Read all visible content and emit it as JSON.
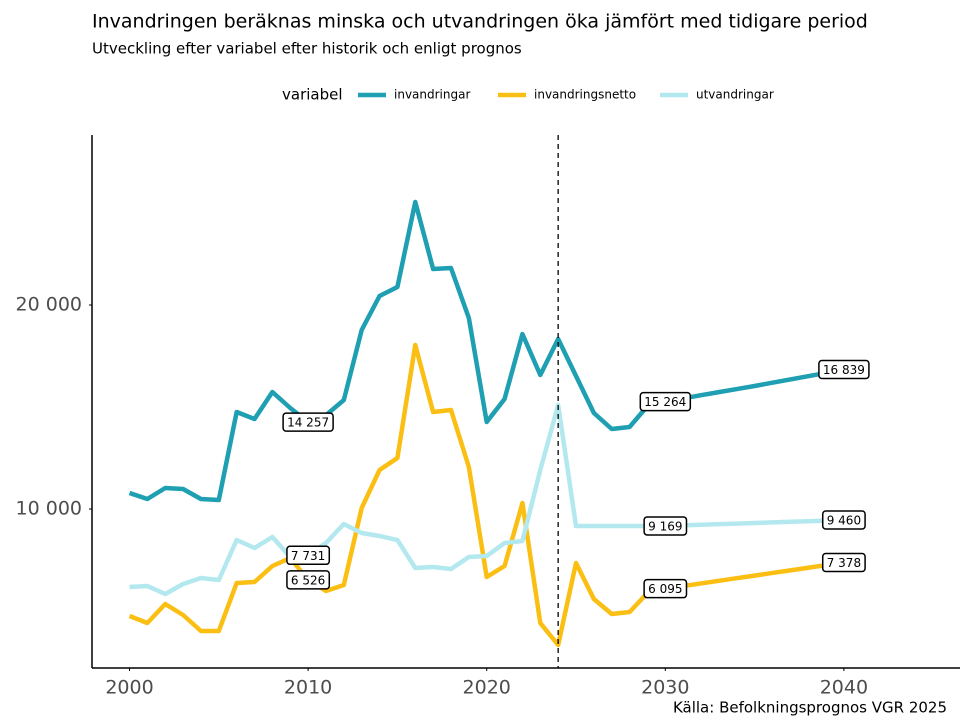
{
  "chart_data": {
    "type": "line",
    "title": "Invandringen beräknas minska och utvandringen öka jämfört med tidigare period",
    "subtitle": "Utveckling efter variabel efter historik och enligt prognos",
    "legend_title": "variabel",
    "source": "Källa: Befolkningsprognos VGR 2025",
    "x": [
      2000,
      2001,
      2002,
      2003,
      2004,
      2005,
      2006,
      2007,
      2008,
      2009,
      2010,
      2011,
      2012,
      2013,
      2014,
      2015,
      2016,
      2017,
      2018,
      2019,
      2020,
      2021,
      2022,
      2023,
      2024,
      2025,
      2026,
      2027,
      2028,
      2029,
      2030,
      2031,
      2032,
      2033,
      2034,
      2035,
      2036,
      2037,
      2038,
      2039,
      2040
    ],
    "vline": 2024,
    "series": [
      {
        "name": "invandringar",
        "color": "#1f9fb2",
        "values": [
          10784,
          10490,
          11029,
          10980,
          10490,
          10441,
          14755,
          14412,
          15735,
          14951,
          14257,
          14600,
          15343,
          18774,
          20441,
          20882,
          25049,
          21765,
          21814,
          19363,
          14265,
          15392,
          18578,
          16569,
          18333,
          16520,
          14706,
          13922,
          14020,
          15049,
          15264,
          15420,
          15580,
          15730,
          15880,
          16030,
          16190,
          16350,
          16510,
          16670,
          16839
        ],
        "value_labels": [
          null,
          null,
          null,
          null,
          null,
          null,
          null,
          null,
          null,
          null,
          "14 257",
          null,
          null,
          null,
          null,
          null,
          null,
          null,
          null,
          null,
          null,
          null,
          null,
          null,
          null,
          null,
          null,
          null,
          null,
          null,
          "15 264",
          null,
          null,
          null,
          null,
          null,
          null,
          null,
          null,
          null,
          "16 839"
        ]
      },
      {
        "name": "invandringsnetto",
        "color": "#fbbf14",
        "values": [
          4755,
          4412,
          5343,
          4804,
          4020,
          4020,
          6373,
          6422,
          7206,
          7598,
          6526,
          5980,
          6275,
          10049,
          11912,
          12500,
          18039,
          14755,
          14853,
          12059,
          6667,
          7206,
          10294,
          4412,
          3333,
          7353,
          5588,
          4853,
          4951,
          5882,
          6095,
          6223,
          6351,
          6480,
          6608,
          6736,
          6865,
          6993,
          7121,
          7250,
          7378
        ],
        "value_labels": [
          null,
          null,
          null,
          null,
          null,
          null,
          null,
          null,
          null,
          null,
          "6 526",
          null,
          null,
          null,
          null,
          null,
          null,
          null,
          null,
          null,
          null,
          null,
          null,
          null,
          null,
          null,
          null,
          null,
          null,
          null,
          "6 095",
          null,
          null,
          null,
          null,
          null,
          null,
          null,
          null,
          null,
          "7 378"
        ]
      },
      {
        "name": "utvandringar",
        "color": "#b3e8ef",
        "values": [
          6176,
          6225,
          5833,
          6324,
          6618,
          6520,
          8480,
          8088,
          8627,
          7647,
          7731,
          8333,
          9265,
          8824,
          8676,
          8480,
          7108,
          7157,
          7059,
          7647,
          7696,
          8333,
          8431,
          11912,
          15098,
          9167,
          9167,
          9168,
          9168,
          9169,
          9169,
          9198,
          9227,
          9256,
          9286,
          9315,
          9344,
          9373,
          9402,
          9431,
          9460
        ],
        "value_labels": [
          null,
          null,
          null,
          null,
          null,
          null,
          null,
          null,
          null,
          null,
          "7 731",
          null,
          null,
          null,
          null,
          null,
          null,
          null,
          null,
          null,
          null,
          null,
          null,
          null,
          null,
          null,
          null,
          null,
          null,
          null,
          "9 169",
          null,
          null,
          null,
          null,
          null,
          null,
          null,
          null,
          null,
          "9 460"
        ]
      }
    ],
    "xlim": [
      1997.9,
      2046.5
    ],
    "ylim": [
      2206,
      28333
    ],
    "xticks": [
      2000,
      2010,
      2020,
      2030,
      2040
    ],
    "yticks": [
      {
        "value": 10000,
        "label": "10 000"
      },
      {
        "value": 20000,
        "label": "20 000"
      }
    ],
    "grid": false
  }
}
